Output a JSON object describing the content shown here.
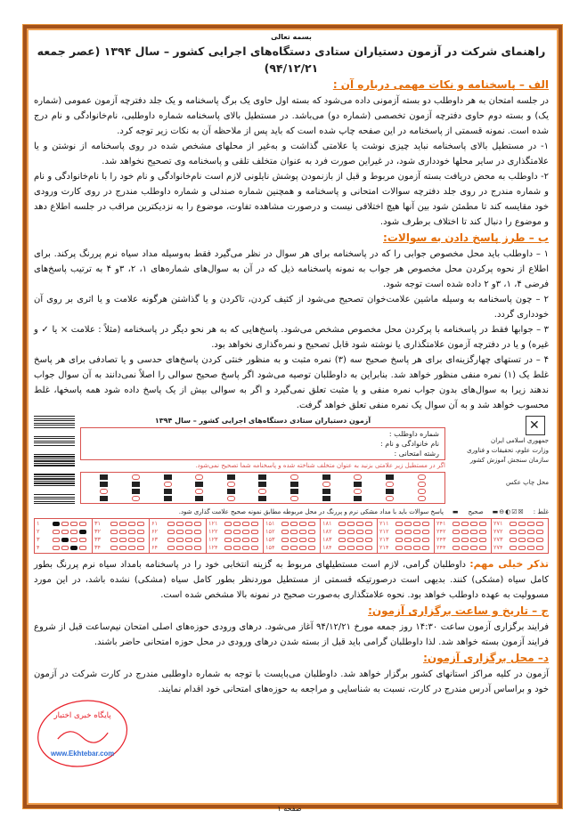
{
  "header": {
    "bismillah": "بسمه تعالی",
    "title": "راهنمای شرکت در آزمون دستیاران ستادی دستگاه‌های اجرایی کشور – سال ۱۳۹۴ (عصر جمعه ۹۴/۱۲/۲۱)"
  },
  "section_a": {
    "heading": "الف – پاسخنامه و نکات مهمی درباره آن :",
    "intro": "در جلسه امتحان به هر داوطلب دو بسته آزمونی داده می‌شود که بسته اول حاوی یک برگ پاسخنامه و یک جلد دفترچه آزمون عمومی (شماره یک) و بسته دوم حاوی دفترچه آزمون تخصصی (شماره دو) می‌باشد. در مستطیل بالای پاسخنامه شماره داوطلبی، نام‌خانوادگی و نام درج شده است. نمونه قسمتی از پاسخنامه در این صفحه چاپ شده است که باید پس از ملاحظه آن به نکات زیر توجه کرد.",
    "items": [
      "۱- در مستطیل بالای پاسخنامه نباید چیزی نوشت یا علامتی گذاشت و به‌غیر از محلهای مشخص شده در روی پاسخنامه از نوشتن و یا علامتگذاری در سایر محلها خودداری شود، در غیراین صورت فرد به عنوان متخلف تلقی و پاسخنامه وی تصحیح نخواهد شد.",
      "۲- داوطلب به محض دریافت بسته آزمون مربوط و قبل از بازنمودن پوشش نایلونی لازم است نام‌خانوادگی و نام خود را با نام‌خانوادگی و نام و شماره مندرج در روی جلد دفترچه سوالات امتحانی و پاسخنامه و همچنین شماره صندلی و شماره داوطلب مندرج در روی کارت ورودی خود مقایسه کند تا مطمئن شود بین آنها هیچ اختلافی نیست و درصورت مشاهده تفاوت، موضوع را به نزدیکترین مراقب در جلسه اطلاع دهد و موضوع را دنبال کند تا اختلاف برطرف شود."
    ]
  },
  "section_b": {
    "heading": "ب – طرز پاسخ دادن به سوالات:",
    "items": [
      "۱ – داوطلب باید محل مخصوص جوابی را که در پاسخنامه برای هر سوال در نظر می‌گیرد فقط به‌وسیله مداد سیاه نرم پررنگ پرکند. برای اطلاع از نحوه پرکردن محل مخصوص هر جواب به نمونه پاسخنامه ذیل که در آن به سوال‌های شماره‌های ۱، ۲، ۳و ۴ به ترتیب پاسخ‌های فرضی ۴، ۱، ۳و ۲ داده شده است توجه شود.",
      "۲ – چون پاسخنامه به وسیله ماشین علامت‌خوان تصحیح می‌شود از کثیف کردن، تاکردن و یا گذاشتن هرگونه علامت و یا اثری بر روی آن خودداری گردد.",
      "۳ – جوابها فقط در پاسخنامه با پرکردن محل مخصوص مشخص می‌شود. پاسخ‌هایی که به هر نحو دیگر در پاسخنامه (مثلاً : علامت × یا ✓ و غیره) و یا در دفترچه آزمون علامتگذاری یا نوشته شود قابل تصحیح و نمره‌گذاری نخواهد بود.",
      "۴ – در تستهای چهارگزینه‌ای برای هر پاسخ صحیح سه (۳) نمره مثبت و به منظور خنثی کردن پاسخ‌های حدسی و یا تصادفی برای هر پاسخ غلط یک (۱) نمره منفی منظور خواهد شد. بنابراین به داوطلبان توصیه می‌شود اگر پاسخ صحیح سوالی را اصلاً نمی‌دانند به آن سوال جواب ندهند زیرا به سوال‌های بدون جواب نمره منفی و یا مثبت تعلق نمی‌گیرد و اگر به سوالی بیش از یک پاسخ داده شود همه پاسخها، غلط محسوب خواهد شد و به آن سوال یک نمره منفی تعلق خواهد گرفت."
    ]
  },
  "answer_sheet": {
    "title": "آزمون دستیاران ستادی دستگاه‌های اجرایی کشور – سال ۱۳۹۴",
    "fields": [
      "شماره داوطلب :",
      "نام خانوادگی و نام :",
      "رشته امتحانی :"
    ],
    "warning": "اگر در مستطیل زیر علامتی بزنید به عنوان متخلف شناخته شده و پاسخنامه شما تصحیح نمی‌شود.",
    "org": [
      "جمهوری اسلامی ایران",
      "وزارت علوم، تحقیقات و فناوری",
      "سازمان سنجش آموزش کشور"
    ],
    "photo": "محل چاپ عکس",
    "instruction": "پاسخ سوالات باید با مداد مشکی نرم و پررنگ در محل مربوطه مطابق نمونه صحیح علامت گذاری شود.",
    "wrong_label": "غلط :",
    "right_label": "صحیح",
    "column_starts": [
      1,
      31,
      61,
      121,
      151,
      181,
      211,
      241,
      271
    ],
    "sample_answers": [
      4,
      1,
      3,
      2
    ]
  },
  "note": {
    "label": "تذکر خیلی مهم:",
    "text": " داوطلبان گرامی، لازم است مستطیلهای مربوط به گزینه انتخابی خود را در پاسخنامه بامداد سیاه نرم پررنگ بطور کامل سیاه (مشکی) کنند. بدیهی است درصورتیکه قسمتی از مستطیل موردنظر بطور کامل سیاه (مشکی) نشده باشد، در این مورد مسوولیت به عهده داوطلب خواهد بود. نحوه علامتگذاری به‌صورت صحیح در نمونه بالا مشخص شده است."
  },
  "section_c": {
    "heading": "ج – تاریخ و ساعت برگزاری آزمون:",
    "text": "فرایند برگزاری آزمون ساعت ۱۴:۳۰ روز جمعه مورخ ۹۴/۱۲/۲۱ آغاز می‌شود. درهای ورودی حوزه‌های اصلی امتحان نیم‌ساعت قبل از شروع فرایند آزمون بسته خواهد شد. لذا داوطلبان گرامی باید قبل از بسته شدن درهای ورودی در محل حوزه امتحانی حاضر باشند."
  },
  "section_d": {
    "heading": "د– محل برگزاری آزمون:",
    "text": "آزمون در کلیه مراکز استانهای کشور برگزار خواهد شد. داوطلبان می‌بایست با توجه به شماره داوطلبی مندرج در کارت شرکت در آزمون خود و براساس آدرس مندرج در کارت، نسبت به شناسایی و مراجعه به حوزه‌های امتحانی خود اقدام نمایند."
  },
  "stamp": {
    "text": "پایگاه خبری اختبار",
    "url": "www.Ekhtebar.com"
  },
  "footer": {
    "page": "صفحه ۱"
  },
  "colors": {
    "heading": "#e36c09",
    "frame": "#a4521a",
    "sheet": "#d9534f",
    "stamp": "#e8202a"
  }
}
